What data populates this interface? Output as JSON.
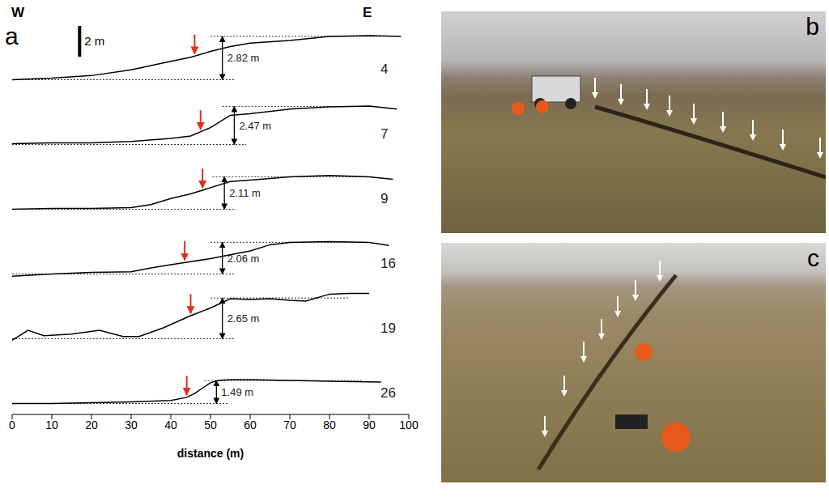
{
  "chart_data": {
    "type": "line",
    "xlabel": "distance (m)",
    "xlim": [
      0,
      100
    ],
    "xticks": [
      0,
      10,
      20,
      30,
      40,
      50,
      60,
      70,
      80,
      90,
      100
    ],
    "ylim": [
      -0.5,
      3.5
    ],
    "tick_labels": "x",
    "annotations": {
      "panel": "a",
      "west": "W",
      "east": "E"
    },
    "scale_bar": {
      "value": 2,
      "label": "2 m"
    },
    "series": [
      {
        "name": "4",
        "color": "#000000",
        "x": [
          0,
          10,
          20,
          30,
          40,
          45,
          50,
          55,
          60,
          70,
          80,
          90,
          98
        ],
        "values": [
          0,
          0.1,
          0.27,
          0.65,
          1.2,
          1.46,
          1.84,
          2.16,
          2.38,
          2.55,
          2.82,
          2.87,
          2.82
        ],
        "base": 0,
        "offset": 2.82,
        "offset_label": "2.82 m",
        "offset_x": 53,
        "arrow_x": 46
      },
      {
        "name": "7",
        "color": "#000000",
        "x": [
          0,
          10,
          20,
          30,
          40,
          45,
          50,
          55,
          60,
          70,
          80,
          90,
          97
        ],
        "values": [
          0.05,
          0.1,
          0.1,
          0.2,
          0.4,
          0.55,
          1.1,
          1.9,
          2.0,
          2.3,
          2.45,
          2.5,
          2.3
        ],
        "base": 0,
        "offset": 2.47,
        "offset_label": "2.47 m",
        "offset_x": 56,
        "arrow_x": 47.5
      },
      {
        "name": "9",
        "color": "#000000",
        "x": [
          0,
          10,
          20,
          30,
          35,
          40,
          45,
          50,
          55,
          60,
          70,
          80,
          90,
          96
        ],
        "values": [
          0,
          0.05,
          0.05,
          0.1,
          0.3,
          0.7,
          1.0,
          1.4,
          1.8,
          1.9,
          2.1,
          2.2,
          2.1,
          1.95
        ],
        "base": 0,
        "offset": 2.11,
        "offset_label": "2.11 m",
        "offset_x": 53.5,
        "arrow_x": 48
      },
      {
        "name": "16",
        "color": "#000000",
        "x": [
          0,
          10,
          20,
          30,
          35,
          40,
          45,
          50,
          55,
          60,
          65,
          70,
          80,
          90,
          95
        ],
        "values": [
          -0.15,
          0,
          0.1,
          0.15,
          0.4,
          0.6,
          0.8,
          1.0,
          1.25,
          1.5,
          1.9,
          2.05,
          2.1,
          2.05,
          1.85
        ],
        "base": 0,
        "offset": 2.06,
        "offset_label": "2.06 m",
        "offset_x": 53,
        "arrow_x": 43.5
      },
      {
        "name": "19",
        "color": "#000000",
        "x": [
          0,
          4,
          8,
          15,
          22,
          28,
          32,
          38,
          45,
          50,
          55,
          60,
          65,
          70,
          74,
          80,
          85,
          90
        ],
        "values": [
          -0.1,
          0.55,
          0.2,
          0.3,
          0.55,
          0.15,
          0.15,
          0.7,
          1.5,
          2.0,
          2.6,
          2.55,
          2.6,
          2.5,
          2.45,
          2.9,
          2.95,
          2.95
        ],
        "base": 0,
        "offset": 2.65,
        "offset_label": "2.65 m",
        "offset_x": 53,
        "arrow_x": 45
      },
      {
        "name": "26",
        "color": "#000000",
        "x": [
          0,
          10,
          20,
          30,
          40,
          44,
          46,
          48,
          50,
          52,
          55,
          60,
          70,
          80,
          93
        ],
        "values": [
          0,
          0,
          0.05,
          0.1,
          0.2,
          0.4,
          0.65,
          1.0,
          1.35,
          1.5,
          1.55,
          1.55,
          1.5,
          1.45,
          1.4
        ],
        "base": 0,
        "offset": 1.49,
        "offset_label": "1.49 m",
        "offset_x": 51.5,
        "arrow_x": 44
      }
    ]
  },
  "photos": [
    {
      "label": "b"
    },
    {
      "label": "c"
    }
  ]
}
